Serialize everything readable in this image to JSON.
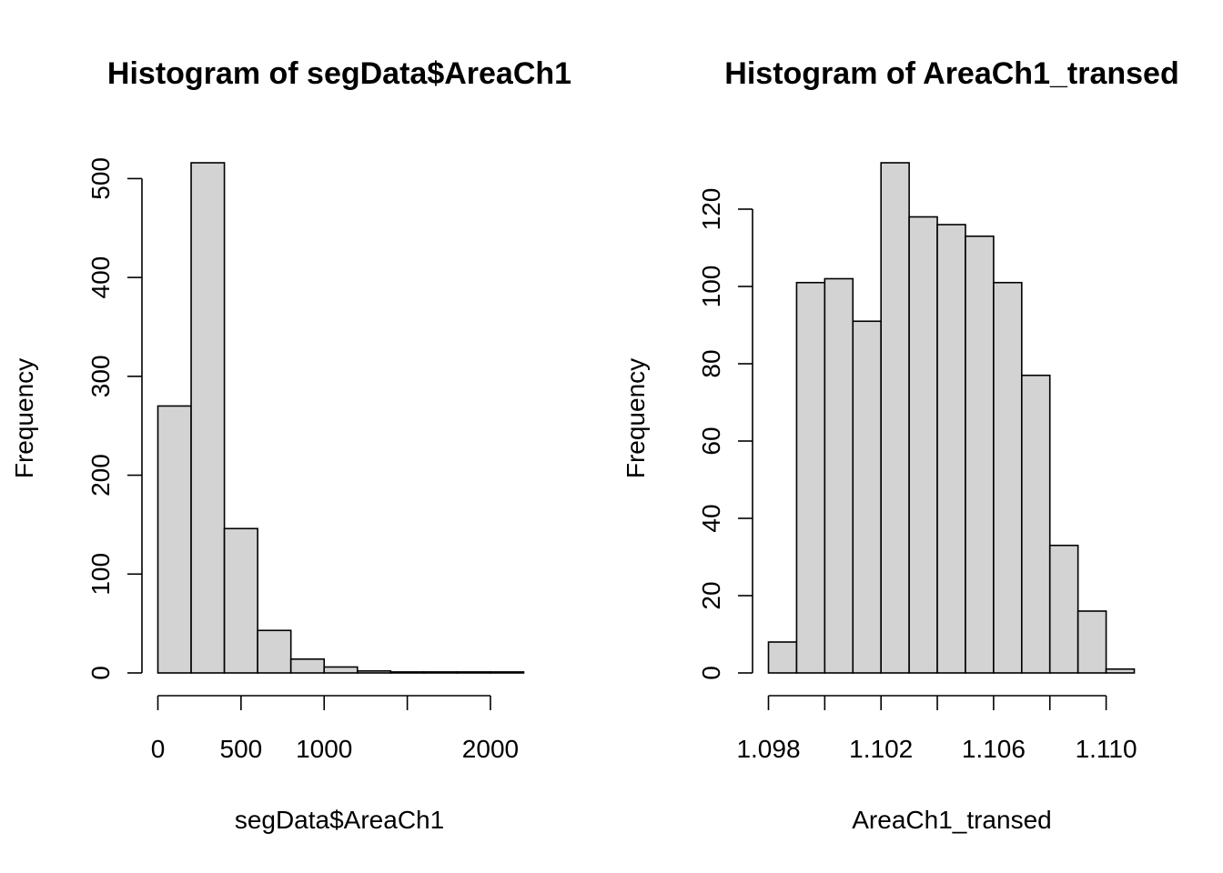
{
  "chart_data": [
    {
      "type": "bar",
      "subtype": "histogram",
      "title": "Histogram of segData$AreaCh1",
      "xlabel": "segData$AreaCh1",
      "ylabel": "Frequency",
      "bin_edges": [
        0,
        200,
        400,
        600,
        800,
        1000,
        1200,
        1400,
        1600,
        1800,
        2000,
        2200
      ],
      "values": [
        270,
        516,
        146,
        43,
        14,
        6,
        2,
        1,
        1,
        1,
        1
      ],
      "xticks": [
        0,
        500,
        1000,
        1500,
        2000
      ],
      "xtick_labels": [
        "0",
        "500",
        "1000",
        "",
        "2000"
      ],
      "yticks": [
        0,
        100,
        200,
        300,
        400,
        500
      ],
      "ytick_labels": [
        "0",
        "100",
        "200",
        "300",
        "400",
        "500"
      ],
      "xlim": [
        0,
        2200
      ],
      "ylim": [
        0,
        516
      ],
      "grid": false,
      "bar_color": "#d3d3d3"
    },
    {
      "type": "bar",
      "subtype": "histogram",
      "title": "Histogram of AreaCh1_transed",
      "xlabel": "AreaCh1_transed",
      "ylabel": "Frequency",
      "bin_edges": [
        1.098,
        1.099,
        1.1,
        1.101,
        1.102,
        1.103,
        1.104,
        1.105,
        1.106,
        1.107,
        1.108,
        1.109,
        1.11,
        1.111
      ],
      "values": [
        8,
        101,
        102,
        91,
        132,
        118,
        116,
        113,
        101,
        77,
        33,
        16,
        1
      ],
      "xticks": [
        1.098,
        1.1,
        1.102,
        1.104,
        1.106,
        1.108,
        1.11
      ],
      "xtick_labels": [
        "1.098",
        "",
        "1.102",
        "",
        "1.106",
        "",
        "1.110"
      ],
      "yticks": [
        0,
        20,
        40,
        60,
        80,
        100,
        120
      ],
      "ytick_labels": [
        "0",
        "20",
        "40",
        "60",
        "80",
        "100",
        "120"
      ],
      "xlim": [
        1.098,
        1.111
      ],
      "ylim": [
        0,
        132
      ],
      "grid": false,
      "bar_color": "#d3d3d3"
    }
  ]
}
